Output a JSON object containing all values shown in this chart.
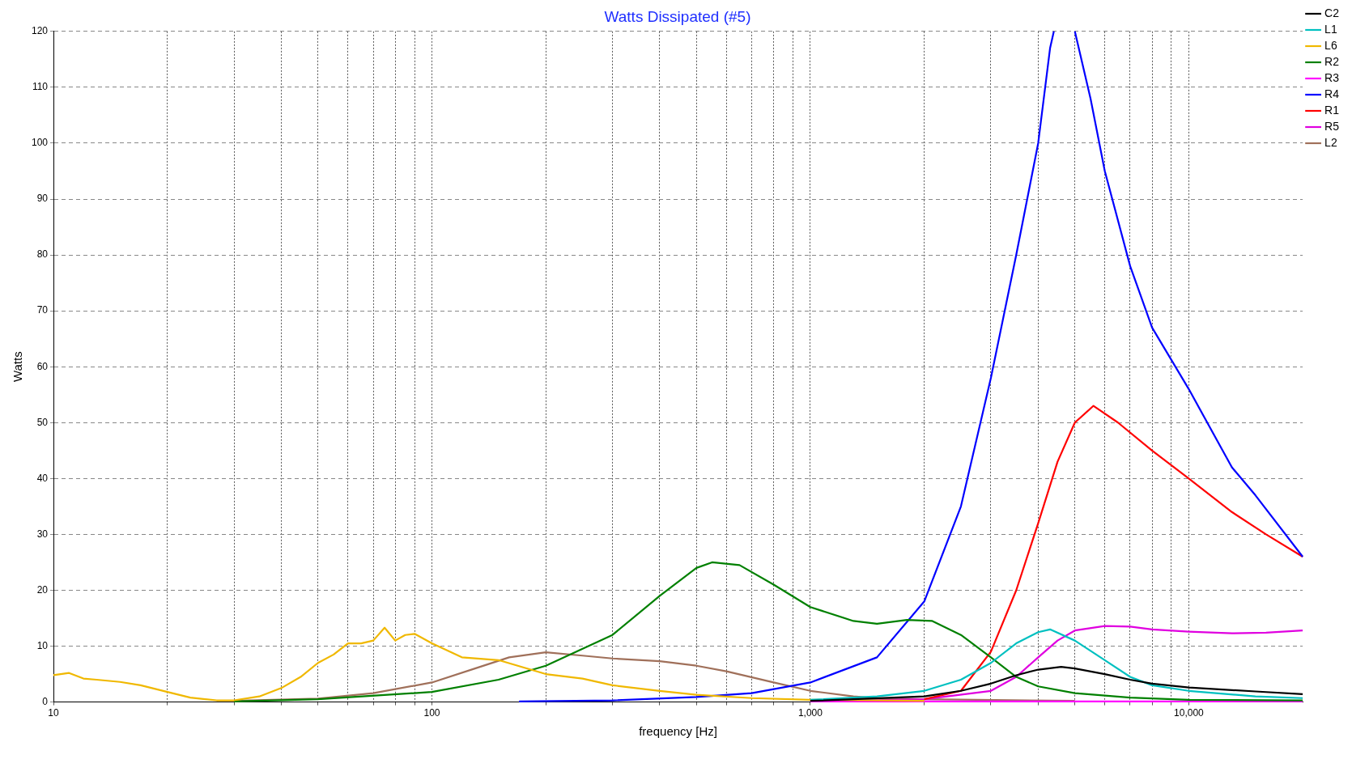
{
  "chart_data": {
    "type": "line",
    "title": "Watts Dissipated (#5)",
    "xlabel": "frequency [Hz]",
    "ylabel": "Watts",
    "log": "x",
    "grid": true,
    "legend": "right",
    "marker": "none",
    "line_style": "solid",
    "xlim": [
      10,
      20000
    ],
    "xticks": [
      10,
      {
        "value": 20,
        "label": null
      },
      {
        "value": 30,
        "label": null
      },
      {
        "value": 40,
        "label": null
      },
      {
        "value": 50,
        "label": null
      },
      {
        "value": 60,
        "label": null
      },
      {
        "value": 70,
        "label": null
      },
      {
        "value": 80,
        "label": null
      },
      {
        "value": 90,
        "label": null
      },
      100,
      {
        "value": 200,
        "label": null
      },
      {
        "value": 300,
        "label": null
      },
      {
        "value": 400,
        "label": null
      },
      {
        "value": 500,
        "label": null
      },
      {
        "value": 600,
        "label": null
      },
      {
        "value": 700,
        "label": null
      },
      {
        "value": 800,
        "label": null
      },
      {
        "value": 900,
        "label": null
      },
      {
        "value": 1000,
        "label": "1,000"
      },
      {
        "value": 2000,
        "label": null
      },
      {
        "value": 3000,
        "label": null
      },
      {
        "value": 4000,
        "label": null
      },
      {
        "value": 5000,
        "label": null
      },
      {
        "value": 6000,
        "label": null
      },
      {
        "value": 7000,
        "label": null
      },
      {
        "value": 8000,
        "label": null
      },
      {
        "value": 9000,
        "label": null
      },
      {
        "value": 10000,
        "label": "10,000"
      }
    ],
    "ylim": [
      0,
      120
    ],
    "yticks": [
      0,
      10,
      20,
      30,
      40,
      50,
      60,
      70,
      80,
      90,
      100,
      110,
      120
    ],
    "series": [
      {
        "name": "C2",
        "color": "#000000",
        "x": [
          1000,
          2000,
          2500,
          3000,
          3500,
          4000,
          4600,
          5000,
          6000,
          7000,
          8000,
          10000,
          15000,
          20000
        ],
        "values": [
          0.2,
          1,
          2,
          3.3,
          4.8,
          5.8,
          6.3,
          6,
          5,
          4,
          3.3,
          2.6,
          1.9,
          1.4
        ]
      },
      {
        "name": "L1",
        "color": "#00c0c0",
        "x": [
          1000,
          1500,
          2000,
          2500,
          3000,
          3500,
          4000,
          4300,
          5000,
          6000,
          7000,
          8000,
          10000,
          15000,
          20000
        ],
        "values": [
          0.4,
          1,
          2,
          4,
          7,
          10.5,
          12.5,
          13,
          11,
          7.5,
          4.5,
          3,
          2,
          1,
          0.7
        ]
      },
      {
        "name": "L6",
        "color": "#f0b800",
        "x": [
          10,
          11,
          12,
          13,
          15,
          17,
          20,
          23,
          27,
          30,
          35,
          40,
          45,
          50,
          55,
          60,
          65,
          70,
          75,
          80,
          85,
          90,
          100,
          120,
          150,
          200,
          250,
          300,
          400,
          500,
          700,
          1000,
          2000
        ],
        "values": [
          4.8,
          5.2,
          4.2,
          4,
          3.6,
          3,
          1.8,
          0.8,
          0.3,
          0.3,
          1,
          2.5,
          4.5,
          7,
          8.5,
          10.5,
          10.5,
          11,
          13.3,
          11,
          12,
          12.2,
          10.5,
          8,
          7.5,
          5,
          4.2,
          3,
          2,
          1.3,
          0.7,
          0.4,
          0.2
        ]
      },
      {
        "name": "R2",
        "color": "#008000",
        "x": [
          30,
          50,
          100,
          150,
          200,
          300,
          400,
          500,
          550,
          650,
          800,
          1000,
          1300,
          1500,
          1800,
          2100,
          2500,
          3000,
          3500,
          4000,
          5000,
          7000,
          10000,
          20000
        ],
        "values": [
          0.1,
          0.5,
          1.8,
          4,
          6.5,
          12,
          19,
          24,
          25,
          24.5,
          21,
          17,
          14.5,
          14,
          14.7,
          14.5,
          12,
          8,
          4.5,
          2.8,
          1.6,
          0.8,
          0.4,
          0.3
        ]
      },
      {
        "name": "R3",
        "color": "#ff00ff",
        "x": [
          1000,
          20000
        ],
        "values": [
          0.1,
          0.1
        ]
      },
      {
        "name": "R4",
        "color": "#0000ff",
        "x": [
          170,
          300,
          500,
          700,
          1000,
          1500,
          2000,
          2500,
          3000,
          3500,
          4000,
          4300,
          4400,
          4700,
          5000,
          5500,
          6000,
          7000,
          8000,
          10000,
          13000,
          15000,
          20000
        ],
        "values": [
          0.1,
          0.3,
          0.9,
          1.6,
          3.5,
          8,
          18,
          35,
          58,
          80,
          100,
          117,
          120,
          null,
          120,
          108,
          95,
          78,
          67,
          56,
          42,
          37,
          26
        ]
      },
      {
        "name": "R1",
        "color": "#ff0000",
        "x": [
          2000,
          2500,
          3000,
          3500,
          4000,
          4500,
          5000,
          5600,
          6500,
          8000,
          10000,
          13000,
          16000,
          20000
        ],
        "values": [
          0.5,
          2,
          9,
          20,
          32,
          43,
          50,
          53,
          50,
          45,
          40,
          34,
          30,
          26
        ]
      },
      {
        "name": "R5",
        "color": "#e000e0",
        "x": [
          1000,
          2000,
          3000,
          3500,
          4000,
          4500,
          5000,
          6000,
          7000,
          8000,
          10000,
          13000,
          16000,
          20000
        ],
        "values": [
          0.1,
          0.5,
          2,
          4.5,
          8,
          11,
          12.8,
          13.6,
          13.5,
          13,
          12.6,
          12.3,
          12.4,
          12.8
        ]
      },
      {
        "name": "L2",
        "color": "#a0705a",
        "x": [
          30,
          50,
          70,
          100,
          130,
          160,
          200,
          250,
          300,
          400,
          500,
          600,
          800,
          1000,
          1300,
          1500,
          2000,
          5000
        ],
        "values": [
          0.2,
          0.6,
          1.6,
          3.5,
          6,
          8,
          8.9,
          8.3,
          7.8,
          7.3,
          6.5,
          5.5,
          3.5,
          2,
          1,
          0.7,
          0.5,
          0.2
        ]
      }
    ]
  }
}
